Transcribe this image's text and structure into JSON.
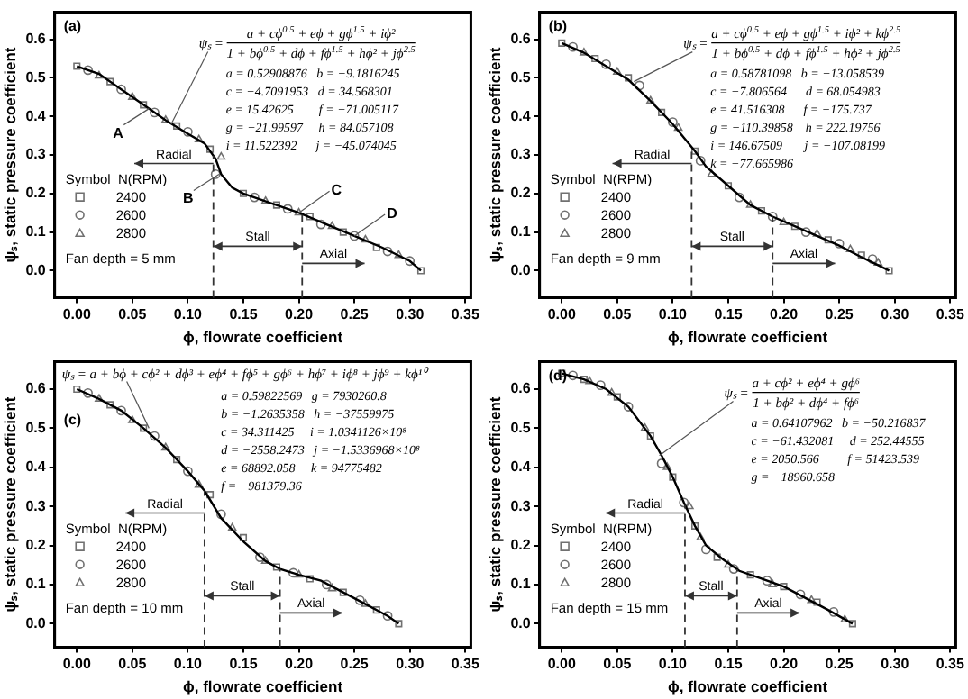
{
  "chart_data": [
    {
      "type": "scatter",
      "xlabel": "ϕ, flowrate coefficient",
      "ylabel": "ψₛ, static pressure coefficient",
      "legend": "left",
      "legend_title": "Symbol  N(RPM)",
      "xlim": [
        -0.02,
        0.355
      ],
      "ylim": [
        -0.07,
        0.67
      ],
      "xticks": [
        {
          "value": 0,
          "label": "0.00"
        },
        {
          "value": 0.05,
          "label": "0.05"
        },
        {
          "value": 0.1,
          "label": "0.10"
        },
        {
          "value": 0.15,
          "label": "0.15"
        },
        {
          "value": 0.2,
          "label": "0.20"
        },
        {
          "value": 0.25,
          "label": "0.25"
        },
        {
          "value": 0.3,
          "label": "0.30"
        },
        {
          "value": 0.35,
          "label": "0.35"
        }
      ],
      "yticks": [
        {
          "value": 0,
          "label": "0.0"
        },
        {
          "value": 0.1,
          "label": "0.1"
        },
        {
          "value": 0.2,
          "label": "0.2"
        },
        {
          "value": 0.3,
          "label": "0.3"
        },
        {
          "value": 0.4,
          "label": "0.4"
        },
        {
          "value": 0.5,
          "label": "0.5"
        },
        {
          "value": 0.6,
          "label": "0.6"
        }
      ],
      "series": [
        {
          "name": "2400",
          "marker": "square",
          "color": "#707070",
          "x": [
            0,
            0.03,
            0.06,
            0.09,
            0.12,
            0.15,
            0.18,
            0.21,
            0.24,
            0.27,
            0.31
          ],
          "values": [
            0.53,
            0.49,
            0.43,
            0.375,
            0.315,
            0.2,
            0.17,
            0.14,
            0.1,
            0.06,
            0.0
          ]
        },
        {
          "name": "2600",
          "marker": "circle",
          "color": "#707070",
          "x": [
            0.01,
            0.04,
            0.07,
            0.1,
            0.125,
            0.16,
            0.19,
            0.22,
            0.25,
            0.28,
            0.3
          ],
          "values": [
            0.52,
            0.47,
            0.41,
            0.36,
            0.25,
            0.19,
            0.16,
            0.12,
            0.09,
            0.05,
            0.025
          ]
        },
        {
          "name": "2800",
          "marker": "triangle",
          "color": "#707070",
          "x": [
            0.02,
            0.05,
            0.08,
            0.11,
            0.13,
            0.17,
            0.2,
            0.23,
            0.26,
            0.29
          ],
          "values": [
            0.505,
            0.45,
            0.39,
            0.34,
            0.295,
            0.18,
            0.15,
            0.115,
            0.08,
            0.04
          ]
        },
        {
          "type": "line",
          "marker": "none",
          "color": "#000000",
          "x": [
            0,
            0.02,
            0.04,
            0.06,
            0.08,
            0.1,
            0.115,
            0.125,
            0.13,
            0.14,
            0.15,
            0.175,
            0.2,
            0.225,
            0.25,
            0.275,
            0.3,
            0.31
          ],
          "values": [
            0.53,
            0.51,
            0.47,
            0.43,
            0.39,
            0.355,
            0.33,
            0.29,
            0.25,
            0.215,
            0.2,
            0.175,
            0.15,
            0.12,
            0.09,
            0.06,
            0.025,
            0.0
          ]
        }
      ],
      "ref_lines": [
        {
          "axis": "x",
          "value": 0.123,
          "line_style": "dashed"
        },
        {
          "axis": "x",
          "value": 0.203,
          "line_style": "dashed"
        }
      ],
      "annotations": [
        "(a)",
        {
          "text": "ψₛ =",
          "x": 0.085,
          "y": 0.38
        },
        "a + cϕ$^{0.5}$ + eϕ + gϕ$^{1.5}$ + iϕ²",
        "1 + bϕ$^{0.5}$ + dϕ + fϕ$^{1.5}$ + hϕ² + jϕ$^{2.5}$",
        "a = 0.52908876   b = −9.1816245",
        "c = −4.7091953   d = 34.568301",
        "e = 15.42625        f = −71.005117",
        "g = −21.99597     h = 84.057108",
        "i = 11.522392      j = −45.074045",
        "Radial",
        "Stall",
        "Axial",
        "Fan depth = 5 mm",
        {
          "text": "A",
          "x": 0.065,
          "y": 0.42
        },
        {
          "text": "B",
          "x": 0.128,
          "y": 0.25
        },
        {
          "text": "C",
          "x": 0.2,
          "y": 0.15
        },
        {
          "text": "D",
          "x": 0.25,
          "y": 0.09
        }
      ]
    },
    {
      "type": "scatter",
      "xlabel": "ϕ, flowrate coefficient",
      "ylabel": "ψₛ, static pressure coefficient",
      "legend": "left",
      "legend_title": "Symbol  N(RPM)",
      "xlim": [
        -0.02,
        0.355
      ],
      "ylim": [
        -0.07,
        0.67
      ],
      "xticks": [
        {
          "value": 0,
          "label": "0.00"
        },
        {
          "value": 0.05,
          "label": "0.05"
        },
        {
          "value": 0.1,
          "label": "0.10"
        },
        {
          "value": 0.15,
          "label": "0.15"
        },
        {
          "value": 0.2,
          "label": "0.20"
        },
        {
          "value": 0.25,
          "label": "0.25"
        },
        {
          "value": 0.3,
          "label": "0.30"
        },
        {
          "value": 0.35,
          "label": "0.35"
        }
      ],
      "yticks": [
        {
          "value": 0,
          "label": "0.0"
        },
        {
          "value": 0.1,
          "label": "0.1"
        },
        {
          "value": 0.2,
          "label": "0.2"
        },
        {
          "value": 0.3,
          "label": "0.3"
        },
        {
          "value": 0.4,
          "label": "0.4"
        },
        {
          "value": 0.5,
          "label": "0.5"
        },
        {
          "value": 0.6,
          "label": "0.6"
        }
      ],
      "series": [
        {
          "name": "2400",
          "marker": "square",
          "color": "#707070",
          "x": [
            0,
            0.03,
            0.06,
            0.09,
            0.12,
            0.15,
            0.18,
            0.21,
            0.24,
            0.27,
            0.295
          ],
          "values": [
            0.59,
            0.55,
            0.5,
            0.41,
            0.31,
            0.22,
            0.155,
            0.115,
            0.08,
            0.04,
            0.0
          ]
        },
        {
          "name": "2600",
          "marker": "circle",
          "color": "#707070",
          "x": [
            0.01,
            0.04,
            0.07,
            0.1,
            0.125,
            0.16,
            0.19,
            0.22,
            0.25,
            0.28
          ],
          "values": [
            0.58,
            0.535,
            0.48,
            0.385,
            0.285,
            0.19,
            0.14,
            0.1,
            0.07,
            0.03
          ]
        },
        {
          "name": "2800",
          "marker": "triangle",
          "color": "#707070",
          "x": [
            0.02,
            0.05,
            0.08,
            0.105,
            0.135,
            0.17,
            0.2,
            0.23,
            0.26,
            0.285
          ],
          "values": [
            0.565,
            0.515,
            0.44,
            0.37,
            0.25,
            0.17,
            0.125,
            0.095,
            0.055,
            0.02
          ]
        },
        {
          "type": "line",
          "marker": "none",
          "color": "#000000",
          "x": [
            0,
            0.02,
            0.04,
            0.06,
            0.08,
            0.1,
            0.11,
            0.12,
            0.13,
            0.15,
            0.17,
            0.19,
            0.21,
            0.23,
            0.25,
            0.27,
            0.295
          ],
          "values": [
            0.59,
            0.565,
            0.53,
            0.495,
            0.44,
            0.38,
            0.345,
            0.31,
            0.27,
            0.22,
            0.17,
            0.14,
            0.115,
            0.09,
            0.065,
            0.035,
            0.0
          ]
        }
      ],
      "ref_lines": [
        {
          "axis": "x",
          "value": 0.117,
          "line_style": "dashed"
        },
        {
          "axis": "x",
          "value": 0.19,
          "line_style": "dashed"
        }
      ],
      "annotations": [
        "(b)",
        {
          "text": "ψₛ =",
          "x": 0.065,
          "y": 0.49
        },
        "a + cϕ$^{0.5}$ + eϕ + gϕ$^{1.5}$ + iϕ² + kϕ$^{2.5}$",
        "1 + bϕ$^{0.5}$ + dϕ + fϕ$^{1.5}$ + hϕ² + jϕ$^{2.5}$",
        "a = 0.58781098   b = −13.058539",
        "c = −7.806564      d = 68.054983",
        "e = 41.516308      f = −175.737",
        "g = −110.39858    h = 222.19756",
        "i = 146.67509       j = −107.08199",
        "k = −77.665986",
        "Radial",
        "Stall",
        "Axial",
        "Fan depth = 9 mm"
      ]
    },
    {
      "type": "scatter",
      "xlabel": "ϕ, flowrate coefficient",
      "ylabel": "ψₛ, static pressure coefficient",
      "legend": "left",
      "legend_title": "Symbol  N(RPM)",
      "xlim": [
        -0.02,
        0.355
      ],
      "ylim": [
        -0.06,
        0.67
      ],
      "xticks": [
        {
          "value": 0,
          "label": "0.00"
        },
        {
          "value": 0.05,
          "label": "0.05"
        },
        {
          "value": 0.1,
          "label": "0.10"
        },
        {
          "value": 0.15,
          "label": "0.15"
        },
        {
          "value": 0.2,
          "label": "0.20"
        },
        {
          "value": 0.25,
          "label": "0.25"
        },
        {
          "value": 0.3,
          "label": "0.30"
        },
        {
          "value": 0.35,
          "label": "0.35"
        }
      ],
      "yticks": [
        {
          "value": 0,
          "label": "0.0"
        },
        {
          "value": 0.1,
          "label": "0.1"
        },
        {
          "value": 0.2,
          "label": "0.2"
        },
        {
          "value": 0.3,
          "label": "0.3"
        },
        {
          "value": 0.4,
          "label": "0.4"
        },
        {
          "value": 0.5,
          "label": "0.5"
        },
        {
          "value": 0.6,
          "label": "0.6"
        }
      ],
      "series": [
        {
          "name": "2400",
          "marker": "square",
          "color": "#707070",
          "x": [
            0,
            0.03,
            0.06,
            0.09,
            0.12,
            0.15,
            0.18,
            0.21,
            0.24,
            0.27,
            0.29
          ],
          "values": [
            0.6,
            0.56,
            0.5,
            0.42,
            0.33,
            0.22,
            0.145,
            0.115,
            0.08,
            0.035,
            0.0
          ]
        },
        {
          "name": "2600",
          "marker": "circle",
          "color": "#707070",
          "x": [
            0.01,
            0.04,
            0.07,
            0.1,
            0.13,
            0.165,
            0.195,
            0.225,
            0.255,
            0.28
          ],
          "values": [
            0.59,
            0.545,
            0.48,
            0.39,
            0.28,
            0.17,
            0.13,
            0.1,
            0.06,
            0.02
          ]
        },
        {
          "name": "2800",
          "marker": "triangle",
          "color": "#707070",
          "x": [
            0.02,
            0.05,
            0.08,
            0.11,
            0.14,
            0.17,
            0.2,
            0.23,
            0.26
          ],
          "values": [
            0.575,
            0.52,
            0.45,
            0.355,
            0.245,
            0.16,
            0.125,
            0.09,
            0.05
          ]
        },
        {
          "type": "line",
          "marker": "none",
          "color": "#000000",
          "x": [
            0,
            0.02,
            0.04,
            0.06,
            0.08,
            0.1,
            0.115,
            0.13,
            0.15,
            0.17,
            0.183,
            0.2,
            0.22,
            0.24,
            0.26,
            0.28,
            0.29
          ],
          "values": [
            0.6,
            0.575,
            0.545,
            0.5,
            0.45,
            0.39,
            0.34,
            0.27,
            0.21,
            0.16,
            0.14,
            0.125,
            0.11,
            0.08,
            0.05,
            0.02,
            0.0
          ]
        }
      ],
      "ref_lines": [
        {
          "axis": "x",
          "value": 0.115,
          "line_style": "dashed"
        },
        {
          "axis": "x",
          "value": 0.183,
          "line_style": "dashed"
        }
      ],
      "annotations": [
        "(c)",
        {
          "text": "ψₛ = a + bϕ + cϕ² + dϕ³ + eϕ⁴ + fϕ⁵ + gϕ⁶ + hϕ⁷ + iϕ⁸ + jϕ⁹ + kϕ¹⁰",
          "x": 0.065,
          "y": 0.5
        },
        "a = 0.59822569   g = 7930260.8",
        "b = −1.2635358   h = −37559975",
        "c = 34.311425     i = 1.0341126×10⁸",
        "d = −2558.2473   j = −1.5336968×10⁸",
        "e = 68892.058     k = 94775482",
        "f = −981379.36",
        "Radial",
        "Stall",
        "Axial",
        "Fan depth = 10 mm"
      ]
    },
    {
      "type": "scatter",
      "xlabel": "ϕ, flowrate coefficient",
      "ylabel": "ψₛ, static pressure coefficient",
      "legend": "left",
      "legend_title": "Symbol  N(RPM)",
      "xlim": [
        -0.02,
        0.355
      ],
      "ylim": [
        -0.06,
        0.67
      ],
      "xticks": [
        {
          "value": 0,
          "label": "0.00"
        },
        {
          "value": 0.05,
          "label": "0.05"
        },
        {
          "value": 0.1,
          "label": "0.10"
        },
        {
          "value": 0.15,
          "label": "0.15"
        },
        {
          "value": 0.2,
          "label": "0.20"
        },
        {
          "value": 0.25,
          "label": "0.25"
        },
        {
          "value": 0.3,
          "label": "0.30"
        },
        {
          "value": 0.35,
          "label": "0.35"
        }
      ],
      "yticks": [
        {
          "value": 0,
          "label": "0.0"
        },
        {
          "value": 0.1,
          "label": "0.1"
        },
        {
          "value": 0.2,
          "label": "0.2"
        },
        {
          "value": 0.3,
          "label": "0.3"
        },
        {
          "value": 0.4,
          "label": "0.4"
        },
        {
          "value": 0.5,
          "label": "0.5"
        },
        {
          "value": 0.6,
          "label": "0.6"
        }
      ],
      "series": [
        {
          "name": "2400",
          "marker": "square",
          "color": "#707070",
          "x": [
            0,
            0.02,
            0.05,
            0.08,
            0.1,
            0.12,
            0.14,
            0.17,
            0.2,
            0.23,
            0.262
          ],
          "values": [
            0.64,
            0.625,
            0.58,
            0.48,
            0.375,
            0.25,
            0.17,
            0.125,
            0.095,
            0.055,
            0.0
          ]
        },
        {
          "name": "2600",
          "marker": "circle",
          "color": "#707070",
          "x": [
            0.01,
            0.035,
            0.06,
            0.09,
            0.11,
            0.13,
            0.155,
            0.185,
            0.215,
            0.245
          ],
          "values": [
            0.635,
            0.61,
            0.555,
            0.41,
            0.31,
            0.19,
            0.14,
            0.11,
            0.075,
            0.03
          ]
        },
        {
          "name": "2800",
          "marker": "triangle",
          "color": "#707070",
          "x": [
            0.025,
            0.045,
            0.075,
            0.095,
            0.115,
            0.125,
            0.15,
            0.19,
            0.225,
            0.255
          ],
          "values": [
            0.62,
            0.59,
            0.5,
            0.4,
            0.3,
            0.22,
            0.15,
            0.1,
            0.06,
            0.01
          ]
        },
        {
          "type": "line",
          "marker": "none",
          "color": "#000000",
          "x": [
            0,
            0.02,
            0.04,
            0.06,
            0.08,
            0.09,
            0.1,
            0.11,
            0.12,
            0.13,
            0.145,
            0.16,
            0.18,
            0.2,
            0.22,
            0.24,
            0.262
          ],
          "values": [
            0.64,
            0.625,
            0.6,
            0.555,
            0.48,
            0.43,
            0.375,
            0.31,
            0.25,
            0.2,
            0.165,
            0.135,
            0.115,
            0.095,
            0.065,
            0.035,
            0.0
          ]
        }
      ],
      "ref_lines": [
        {
          "axis": "x",
          "value": 0.111,
          "line_style": "dashed"
        },
        {
          "axis": "x",
          "value": 0.158,
          "line_style": "dashed"
        }
      ],
      "annotations": [
        "(d)",
        {
          "text": "ψₛ =",
          "x": 0.088,
          "y": 0.43
        },
        "a + cϕ² + eϕ⁴ + gϕ⁶",
        "1 + bϕ² + dϕ⁴ + fϕ⁶",
        "a = 0.64107962   b = −50.216837",
        "c = −61.432081     d = 252.44555",
        "e = 2050.566         f = 51423.539",
        "g = −18960.658",
        "Radial",
        "Stall",
        "Axial",
        "Fan depth = 15 mm"
      ]
    }
  ]
}
